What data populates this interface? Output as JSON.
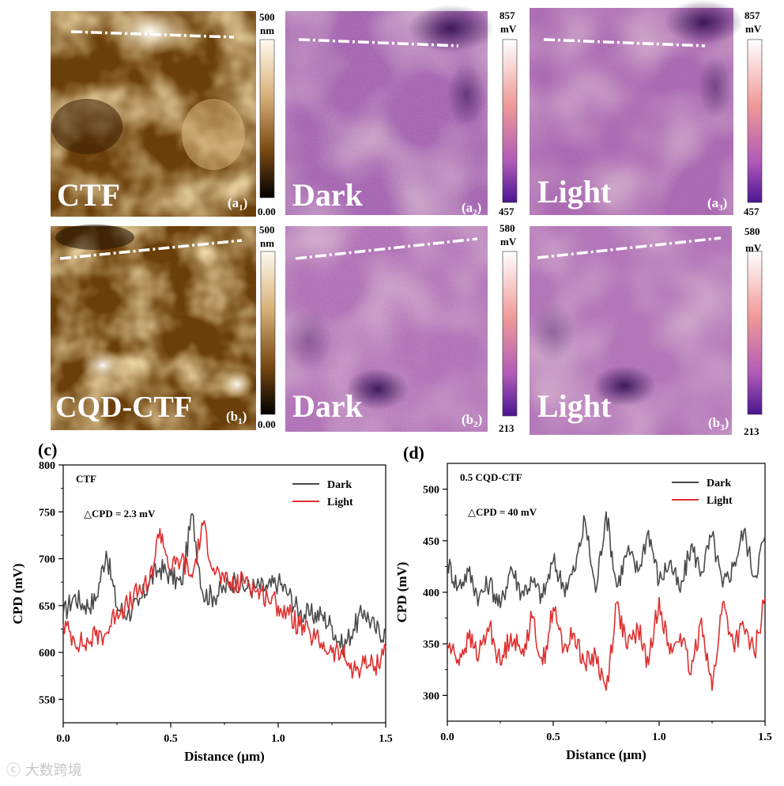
{
  "watermark": "大数跨境",
  "colorbars": {
    "height_top": {
      "max": "500",
      "unit": "nm",
      "min": "0.00"
    },
    "kpfm_top_dark": {
      "max": "857",
      "unit": "mV",
      "min": "457"
    },
    "kpfm_top_light": {
      "max": "857",
      "unit": "mV",
      "min": "457"
    },
    "height_bottom": {
      "max": "500",
      "unit": "nm",
      "min": "0.00"
    },
    "kpfm_bottom_dark": {
      "max": "580",
      "unit": "mV",
      "min": "213"
    },
    "kpfm_bottom_light": {
      "max": "580",
      "unit": "mV",
      "min": "213"
    }
  },
  "images": {
    "a1": {
      "label": "CTF",
      "tag_base": "a",
      "tag_sub": "1"
    },
    "a2": {
      "label": "Dark",
      "tag_base": "a",
      "tag_sub": "2"
    },
    "a3": {
      "label": "Light",
      "tag_base": "a",
      "tag_sub": "3"
    },
    "b1": {
      "label": "CQD-CTF",
      "tag_base": "b",
      "tag_sub": "1"
    },
    "b2": {
      "label": "Dark",
      "tag_base": "b",
      "tag_sub": "2"
    },
    "b3": {
      "label": "Light",
      "tag_base": "b",
      "tag_sub": "3"
    }
  },
  "colors": {
    "dark": "#4a4a4a",
    "light": "#e03030",
    "height_hi": "#fff4dc",
    "height_lo": "#000000",
    "kpfm_hi": "#fdf3ee",
    "kpfm_mid": "#e8879a",
    "kpfm_lo": "#5a1b9a"
  },
  "chart_data": [
    {
      "panel": "(c)",
      "type": "line",
      "title": "CTF",
      "annotation": "△CPD = 2.3 mV",
      "xlabel": "Distance (μm)",
      "ylabel": "CPD (mV)",
      "xlim": [
        0,
        1.5
      ],
      "ylim": [
        525,
        800
      ],
      "xticks": [
        "0.0",
        "0.5",
        "1.0",
        "1.5"
      ],
      "yticks": [
        "550",
        "600",
        "650",
        "700",
        "750",
        "800"
      ],
      "legend": "top-right",
      "series": [
        {
          "name": "Dark",
          "x": [
            0,
            0.05,
            0.1,
            0.15,
            0.2,
            0.25,
            0.3,
            0.35,
            0.4,
            0.45,
            0.5,
            0.55,
            0.6,
            0.65,
            0.7,
            0.75,
            0.8,
            0.85,
            0.9,
            0.95,
            1.0,
            1.05,
            1.1,
            1.15,
            1.2,
            1.25,
            1.3,
            1.35,
            1.4,
            1.45,
            1.5
          ],
          "y": [
            640,
            660,
            650,
            655,
            708,
            648,
            642,
            650,
            675,
            690,
            682,
            672,
            748,
            662,
            660,
            668,
            678,
            668,
            670,
            668,
            675,
            662,
            642,
            640,
            640,
            628,
            605,
            625,
            645,
            625,
            620
          ]
        },
        {
          "name": "Light",
          "x": [
            0,
            0.05,
            0.1,
            0.15,
            0.2,
            0.25,
            0.3,
            0.35,
            0.4,
            0.45,
            0.5,
            0.55,
            0.6,
            0.65,
            0.7,
            0.75,
            0.8,
            0.85,
            0.9,
            0.95,
            1.0,
            1.05,
            1.1,
            1.15,
            1.2,
            1.25,
            1.3,
            1.35,
            1.4,
            1.45,
            1.5
          ],
          "y": [
            630,
            615,
            608,
            618,
            620,
            645,
            650,
            665,
            672,
            732,
            688,
            700,
            680,
            736,
            690,
            675,
            670,
            680,
            665,
            660,
            650,
            640,
            628,
            618,
            610,
            600,
            598,
            580,
            588,
            585,
            605
          ]
        }
      ]
    },
    {
      "panel": "(d)",
      "type": "line",
      "title": "0.5 CQD-CTF",
      "annotation": "△CPD = 40 mV",
      "xlabel": "Distance (μm)",
      "ylabel": "CPD (mV)",
      "xlim": [
        0,
        1.5
      ],
      "ylim": [
        275,
        525
      ],
      "xticks": [
        "0.0",
        "0.5",
        "1.0",
        "1.5"
      ],
      "yticks": [
        "300",
        "350",
        "400",
        "450",
        "500"
      ],
      "legend": "top-right",
      "series": [
        {
          "name": "Dark",
          "x": [
            0,
            0.05,
            0.1,
            0.15,
            0.2,
            0.25,
            0.3,
            0.35,
            0.4,
            0.45,
            0.5,
            0.55,
            0.6,
            0.65,
            0.7,
            0.75,
            0.8,
            0.85,
            0.9,
            0.95,
            1.0,
            1.05,
            1.1,
            1.15,
            1.2,
            1.25,
            1.3,
            1.35,
            1.4,
            1.45,
            1.5
          ],
          "y": [
            430,
            405,
            420,
            395,
            410,
            385,
            425,
            400,
            410,
            395,
            430,
            405,
            420,
            470,
            400,
            478,
            405,
            440,
            420,
            460,
            410,
            430,
            400,
            445,
            420,
            455,
            405,
            425,
            460,
            415,
            455
          ]
        },
        {
          "name": "Light",
          "x": [
            0,
            0.05,
            0.1,
            0.15,
            0.2,
            0.25,
            0.3,
            0.35,
            0.4,
            0.45,
            0.5,
            0.55,
            0.6,
            0.65,
            0.7,
            0.75,
            0.8,
            0.85,
            0.9,
            0.95,
            1.0,
            1.05,
            1.1,
            1.15,
            1.2,
            1.25,
            1.3,
            1.35,
            1.4,
            1.45,
            1.5
          ],
          "y": [
            350,
            335,
            355,
            340,
            368,
            330,
            360,
            340,
            375,
            330,
            385,
            345,
            360,
            330,
            340,
            305,
            390,
            345,
            365,
            330,
            395,
            340,
            360,
            320,
            375,
            305,
            390,
            350,
            365,
            340,
            395
          ]
        }
      ]
    }
  ]
}
